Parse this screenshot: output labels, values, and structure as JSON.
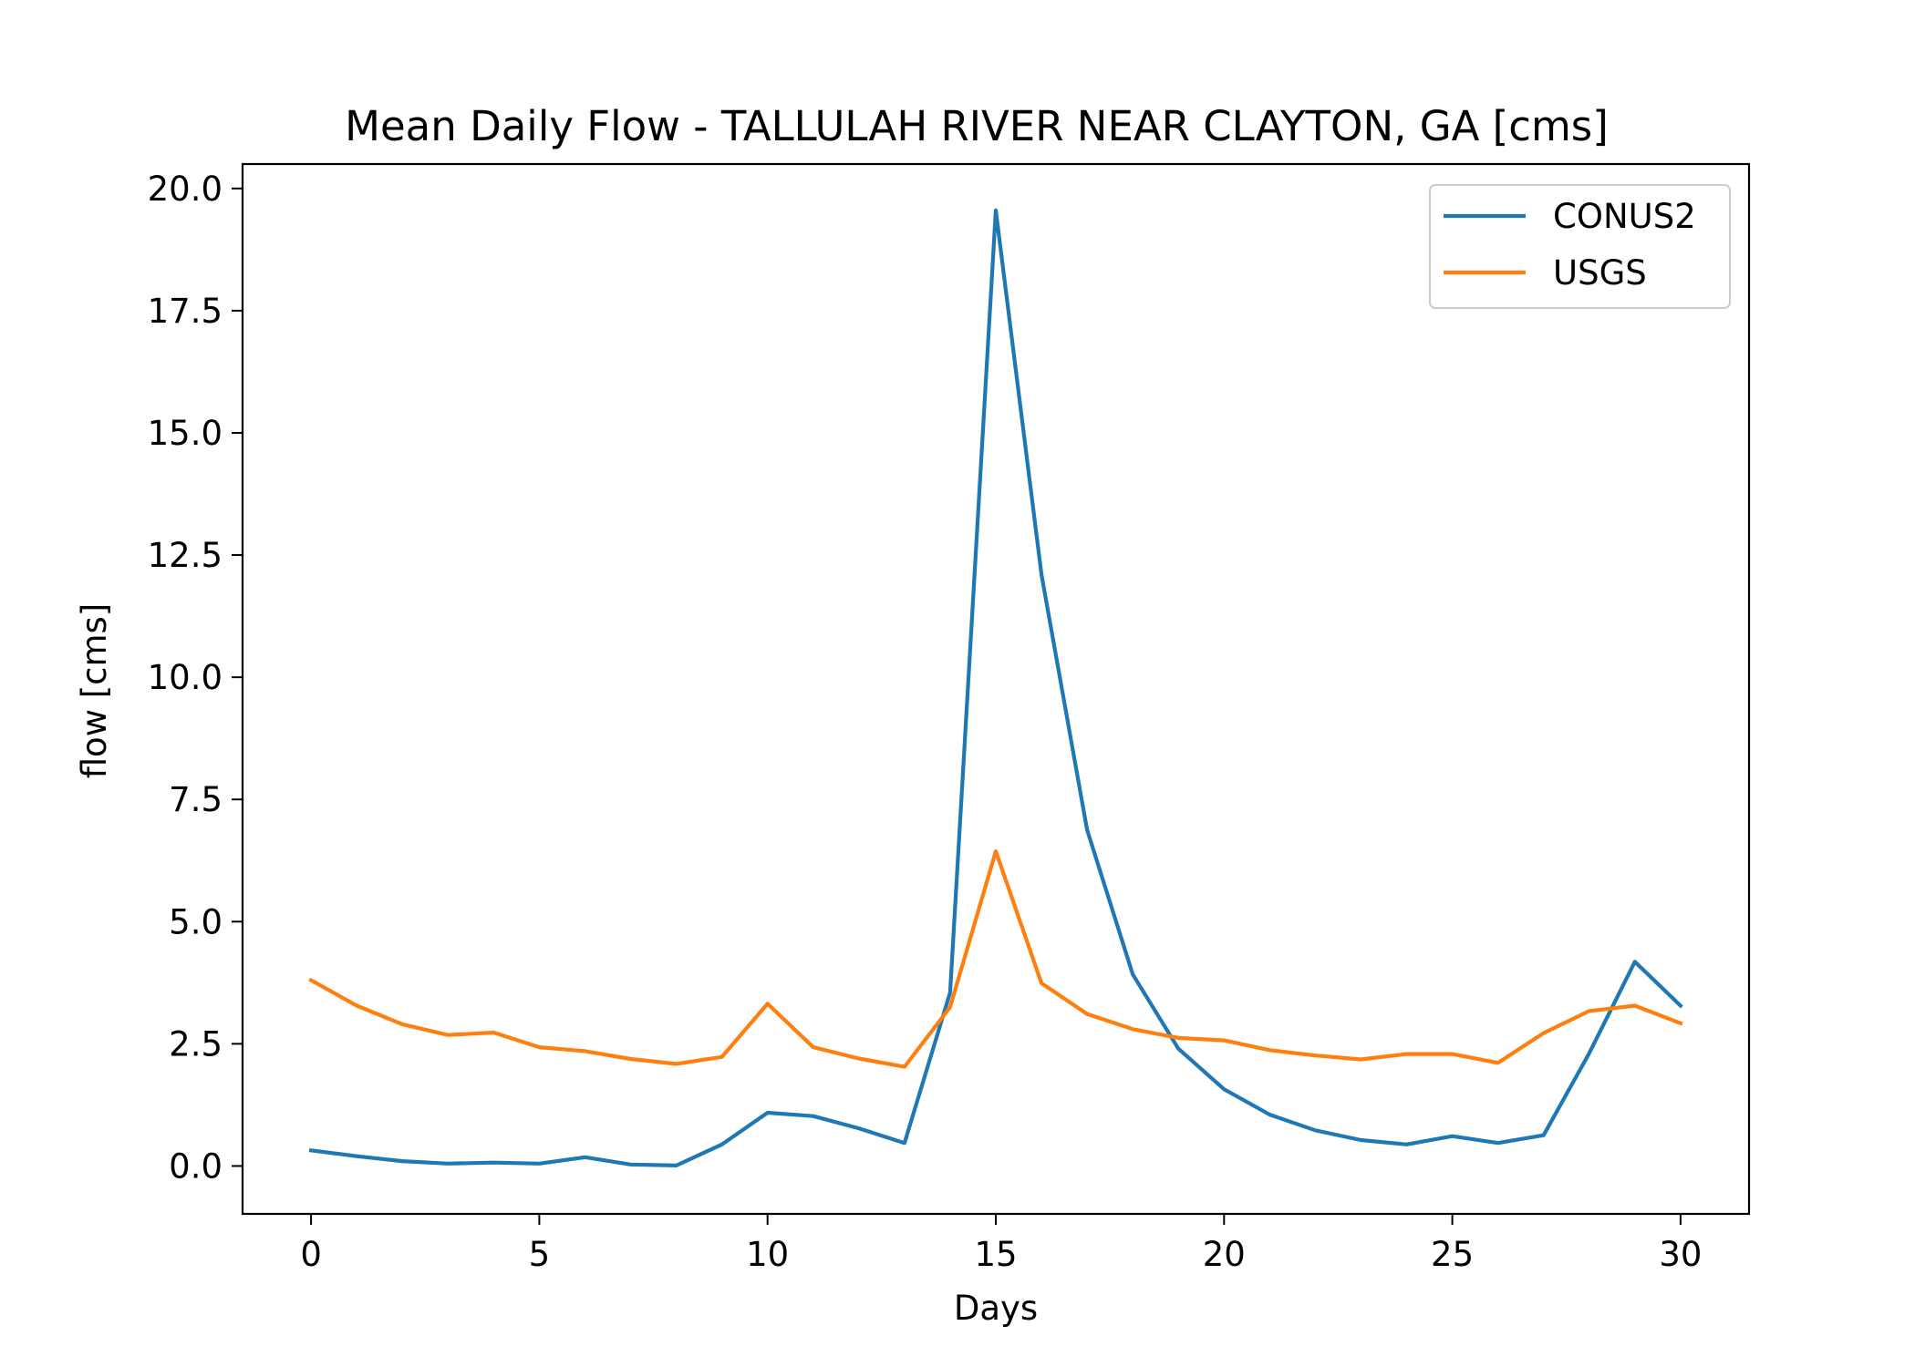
{
  "chart_data": {
    "type": "line",
    "title": "Mean Daily Flow - TALLULAH RIVER NEAR CLAYTON, GA [cms]",
    "xlabel": "Days",
    "ylabel": "flow [cms]",
    "xlim": [
      -1.5,
      31.5
    ],
    "ylim": [
      -0.98,
      20.5
    ],
    "xticks": [
      0,
      5,
      10,
      15,
      20,
      25,
      30
    ],
    "xtick_labels": [
      "0",
      "5",
      "10",
      "15",
      "20",
      "25",
      "30"
    ],
    "yticks": [
      0,
      2.5,
      5,
      7.5,
      10,
      12.5,
      15,
      17.5,
      20
    ],
    "ytick_labels": [
      "0.0",
      "2.5",
      "5.0",
      "7.5",
      "10.0",
      "12.5",
      "15.0",
      "17.5",
      "20.0"
    ],
    "grid": false,
    "legend_position": "top-right",
    "x": [
      0,
      1,
      2,
      3,
      4,
      5,
      6,
      7,
      8,
      9,
      10,
      11,
      12,
      13,
      14,
      15,
      16,
      17,
      18,
      19,
      20,
      21,
      22,
      23,
      24,
      25,
      26,
      27,
      28,
      29,
      30
    ],
    "series": [
      {
        "name": "CONUS2",
        "color": "#1f77b4",
        "values": [
          0.32,
          0.2,
          0.1,
          0.05,
          0.07,
          0.05,
          0.18,
          0.03,
          0.01,
          0.44,
          1.09,
          1.02,
          0.77,
          0.47,
          3.55,
          19.55,
          12.1,
          6.88,
          3.92,
          2.4,
          1.57,
          1.05,
          0.73,
          0.53,
          0.44,
          0.61,
          0.47,
          0.63,
          2.31,
          4.18,
          3.28
        ]
      },
      {
        "name": "USGS",
        "color": "#ff7f0e",
        "values": [
          3.8,
          3.28,
          2.9,
          2.68,
          2.73,
          2.43,
          2.35,
          2.19,
          2.09,
          2.23,
          3.32,
          2.43,
          2.2,
          2.03,
          3.25,
          6.44,
          3.74,
          3.11,
          2.8,
          2.62,
          2.57,
          2.37,
          2.26,
          2.18,
          2.29,
          2.29,
          2.11,
          2.72,
          3.17,
          3.28,
          2.92
        ]
      }
    ]
  }
}
